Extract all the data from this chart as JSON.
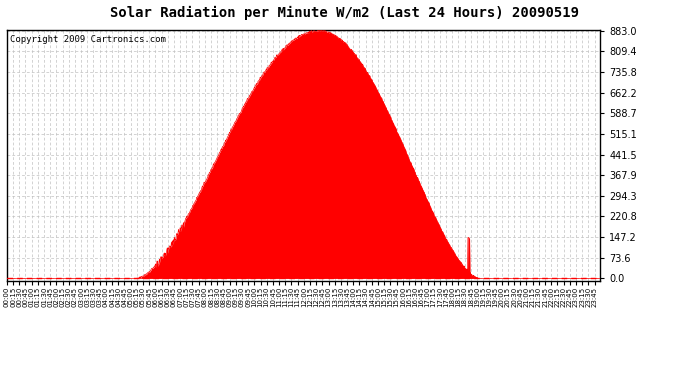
{
  "title": "Solar Radiation per Minute W/m2 (Last 24 Hours) 20090519",
  "copyright": "Copyright 2009 Cartronics.com",
  "fill_color": "#FF0000",
  "line_color": "#FF0000",
  "background_color": "#FFFFFF",
  "grid_color": "#C0C0C0",
  "dashed_line_color": "#FF0000",
  "yticks": [
    0.0,
    73.6,
    147.2,
    220.8,
    294.3,
    367.9,
    441.5,
    515.1,
    588.7,
    662.2,
    735.8,
    809.4,
    883.0
  ],
  "ymax": 883.0,
  "ymin": 0.0,
  "peak_value": 883.0,
  "peak_minute": 757,
  "sunrise_minute": 315,
  "sunset_minute": 1145,
  "total_minutes": 1440,
  "tick_interval": 15
}
